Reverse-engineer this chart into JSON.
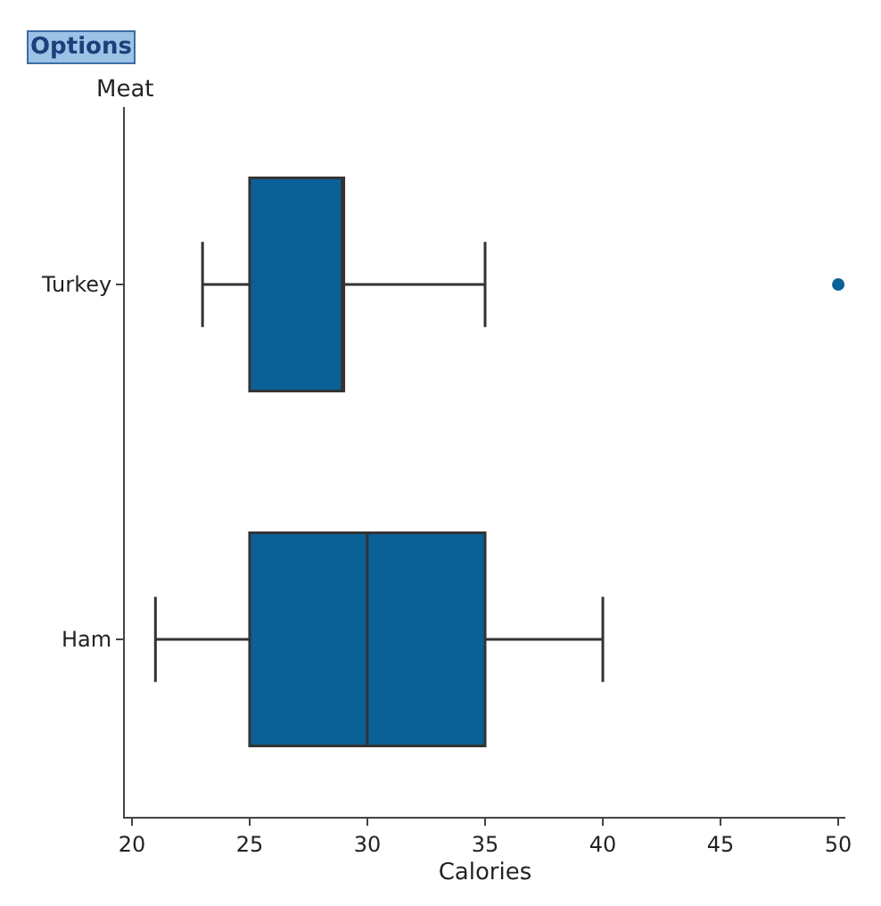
{
  "chart_data": {
    "type": "box",
    "orientation": "horizontal",
    "categories": [
      "Turkey",
      "Ham"
    ],
    "color": "#0a6097",
    "boxes": [
      {
        "low": 23,
        "q1": 25,
        "median": 29,
        "q3": 29,
        "high": 35,
        "outliers": [
          50
        ]
      },
      {
        "low": 21,
        "q1": 25,
        "median": 30,
        "q3": 35,
        "high": 40
      }
    ],
    "xlabel": "Calories",
    "ylabel": "Meat",
    "xlim": [
      19.7,
      50.3
    ],
    "xticks": [
      20,
      25,
      30,
      35,
      40,
      45,
      50
    ],
    "annotations": [
      "Options"
    ]
  }
}
